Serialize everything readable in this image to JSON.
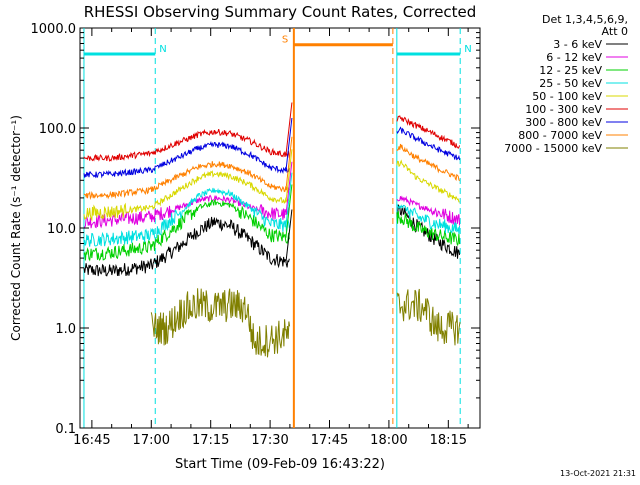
{
  "window": {
    "title": "RHESSI Observing Summary Count Rates, Corrected",
    "footer_date": "13-Oct-2021 21:31"
  },
  "chart_data": {
    "type": "line",
    "title": "RHESSI Observing Summary Count Rates, Corrected",
    "xlabel": "Start Time (09-Feb-09 16:43:22)",
    "ylabel": "Corrected Count Rate (s⁻¹ detector⁻¹)",
    "y_scale": "log",
    "ylim": [
      0.1,
      1000
    ],
    "xlim": [
      "16:42",
      "18:23"
    ],
    "x_ticks": [
      "16:45",
      "17:00",
      "17:15",
      "17:30",
      "17:45",
      "18:00",
      "18:15"
    ],
    "y_ticks": [
      "0.1",
      "1.0",
      "10.0",
      "100.0",
      "1000.0"
    ],
    "grid": false,
    "legend_position": "top-right",
    "legend_header": [
      "Det 1,3,4,5,6,9,",
      "Att 0"
    ],
    "series": [
      {
        "name": "3 - 6 keV",
        "color": "#000000",
        "x": [
          "16:43",
          "16:50",
          "17:00",
          "17:07",
          "17:12",
          "17:16",
          "17:20",
          "17:25",
          "17:30",
          "17:35",
          "18:03",
          "18:07",
          "18:12",
          "18:18"
        ],
        "y": [
          3.8,
          3.7,
          4.2,
          6.5,
          9.5,
          11.5,
          10.5,
          7.5,
          5.0,
          4.5,
          15.0,
          10.5,
          7.5,
          5.5
        ]
      },
      {
        "name": "6 - 12 keV",
        "color": "#e000e0",
        "x": [
          "16:43",
          "16:50",
          "17:00",
          "17:07",
          "17:12",
          "17:16",
          "17:20",
          "17:25",
          "17:30",
          "17:35",
          "18:03",
          "18:07",
          "18:12",
          "18:18"
        ],
        "y": [
          11.5,
          12.0,
          13.0,
          16.0,
          19.0,
          20.0,
          19.0,
          16.0,
          14.0,
          13.5,
          20.0,
          17.0,
          14.5,
          12.0
        ]
      },
      {
        "name": "12 - 25 keV",
        "color": "#00d000",
        "x": [
          "16:43",
          "16:50",
          "17:00",
          "17:07",
          "17:12",
          "17:16",
          "17:20",
          "17:25",
          "17:30",
          "17:35",
          "18:03",
          "18:07",
          "18:12",
          "18:18"
        ],
        "y": [
          5.5,
          5.7,
          6.5,
          11.0,
          16.0,
          18.0,
          17.0,
          12.5,
          8.5,
          8.0,
          13.0,
          10.0,
          8.5,
          7.5
        ]
      },
      {
        "name": "25 - 50 keV",
        "color": "#00e0e0",
        "x": [
          "16:43",
          "16:50",
          "17:00",
          "17:07",
          "17:12",
          "17:16",
          "17:20",
          "17:25",
          "17:30",
          "17:35",
          "18:03",
          "18:07",
          "18:12",
          "18:18"
        ],
        "y": [
          7.5,
          7.8,
          8.5,
          14.0,
          21.0,
          24.0,
          22.0,
          16.0,
          11.0,
          10.5,
          17.0,
          13.0,
          11.0,
          9.5
        ]
      },
      {
        "name": "50 - 100 keV",
        "color": "#d8d800",
        "x": [
          "16:43",
          "16:50",
          "17:00",
          "17:07",
          "17:12",
          "17:16",
          "17:20",
          "17:25",
          "17:30",
          "17:35",
          "18:03",
          "18:07",
          "18:12",
          "18:18"
        ],
        "y": [
          14.0,
          14.5,
          16.0,
          24.0,
          32.0,
          35.0,
          33.0,
          27.0,
          20.0,
          18.0,
          45.0,
          32.0,
          25.0,
          19.0
        ]
      },
      {
        "name": "100 - 300 keV",
        "color": "#e00000",
        "x": [
          "16:43",
          "16:50",
          "17:00",
          "17:07",
          "17:12",
          "17:16",
          "17:20",
          "17:25",
          "17:30",
          "17:35",
          "18:03",
          "18:07",
          "18:12",
          "18:18"
        ],
        "y": [
          50.0,
          50.0,
          56.0,
          72.0,
          86.0,
          92.0,
          88.0,
          74.0,
          58.0,
          53.0,
          125.0,
          105.0,
          85.0,
          65.0
        ]
      },
      {
        "name": "300 - 800 keV",
        "color": "#0000e0",
        "x": [
          "16:43",
          "16:50",
          "17:00",
          "17:07",
          "17:12",
          "17:16",
          "17:20",
          "17:25",
          "17:30",
          "17:35",
          "18:03",
          "18:07",
          "18:12",
          "18:18"
        ],
        "y": [
          34.0,
          34.5,
          38.0,
          51.0,
          63.0,
          68.0,
          66.0,
          54.0,
          40.0,
          37.0,
          95.0,
          78.0,
          62.0,
          49.0
        ]
      },
      {
        "name": "800 - 7000 keV",
        "color": "#ff8000",
        "x": [
          "16:43",
          "16:50",
          "17:00",
          "17:07",
          "17:12",
          "17:16",
          "17:20",
          "17:25",
          "17:30",
          "17:35",
          "18:03",
          "18:07",
          "18:12",
          "18:18"
        ],
        "y": [
          21.0,
          21.5,
          24.0,
          33.0,
          41.0,
          44.0,
          42.0,
          35.0,
          26.0,
          24.0,
          65.0,
          50.0,
          40.0,
          31.0
        ]
      },
      {
        "name": "7000 - 15000 keV",
        "color": "#808000",
        "x": [
          "17:00",
          "17:04",
          "17:08",
          "17:12",
          "17:16",
          "17:20",
          "17:24",
          "17:26",
          "18:03",
          "18:06",
          "18:09",
          "18:12",
          "18:15",
          "18:18"
        ],
        "y": [
          1.0,
          1.0,
          1.5,
          1.7,
          1.6,
          1.7,
          1.6,
          0.7,
          1.7,
          1.7,
          1.6,
          1.0,
          1.0,
          1.0
        ]
      }
    ],
    "annotations": [
      {
        "label": "N",
        "color": "#00e0e0",
        "from": "16:43",
        "to": "17:01",
        "level": 550
      },
      {
        "label": "N",
        "color": "#00e0e0",
        "from": "18:02",
        "to": "18:18",
        "level": 550
      },
      {
        "label": "S",
        "color": "#ff8000",
        "from": "17:36",
        "to": "18:01",
        "level": 680
      }
    ],
    "data_gaps": [
      {
        "from": "17:35",
        "to": "18:02"
      }
    ]
  }
}
